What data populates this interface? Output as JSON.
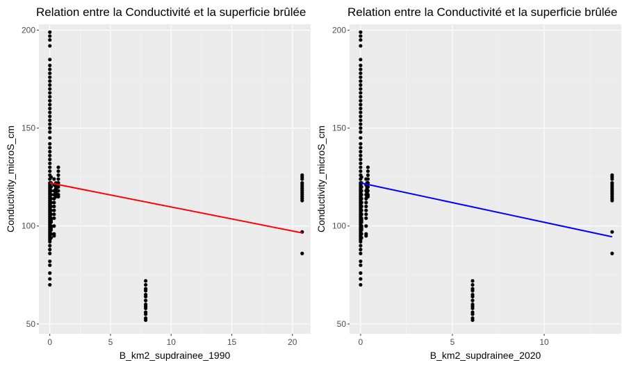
{
  "chart_data": [
    {
      "type": "scatter",
      "title": "Relation entre la Conductivité et la superficie brûlée",
      "xlabel": "B_km2_supdrainee_1990",
      "ylabel": "Conductivity_microS_cm",
      "xlim": [
        -0.9,
        21.5
      ],
      "ylim": [
        45,
        203
      ],
      "x_ticks": [
        0,
        5,
        10,
        15,
        20
      ],
      "x_tick_labels": [
        "0",
        "5",
        "10",
        "15",
        "20"
      ],
      "y_ticks": [
        50,
        100,
        150,
        200
      ],
      "y_tick_labels": [
        "50",
        "100",
        "150",
        "200"
      ],
      "grid": true,
      "background": "#ebebeb",
      "point_color": "#000000",
      "point_groups": [
        {
          "x": 0,
          "y": [
            199,
            197,
            195,
            192,
            185,
            182,
            180,
            178,
            176,
            174,
            172,
            170,
            168,
            166,
            164,
            162,
            160,
            158,
            156,
            154,
            152,
            150,
            148,
            145,
            142,
            140,
            138,
            136,
            134,
            132,
            130,
            128,
            126,
            124,
            122,
            121,
            120,
            119,
            118,
            117,
            116,
            115,
            114,
            113,
            112,
            111,
            110,
            109,
            108,
            107,
            106,
            105,
            104,
            103,
            102,
            101,
            100,
            99,
            98,
            97,
            96,
            95,
            94,
            93,
            92,
            90,
            88,
            86,
            82,
            80,
            76,
            73,
            70
          ]
        },
        {
          "x": 0.1,
          "y": [
            125,
            122,
            120,
            118,
            116,
            114,
            112,
            110,
            108,
            106,
            104,
            102,
            100,
            98,
            96,
            94,
            112,
            110,
            106,
            103,
            99
          ]
        },
        {
          "x": 0.35,
          "y": [
            124,
            121,
            118,
            116,
            114,
            112,
            110,
            108,
            106,
            104,
            100,
            96,
            95
          ]
        },
        {
          "x": 0.5,
          "y": [
            122,
            121,
            120,
            119,
            118,
            117,
            116,
            115
          ]
        },
        {
          "x": 0.7,
          "y": [
            130,
            128,
            126,
            124,
            122,
            120,
            118,
            116,
            115
          ]
        },
        {
          "x": 7.9,
          "y": [
            72,
            70,
            68,
            67,
            65,
            64,
            62,
            60,
            59,
            58,
            56,
            55,
            53,
            52
          ]
        },
        {
          "x": 20.8,
          "y": [
            126,
            125,
            124,
            122,
            121,
            120,
            119,
            118,
            117,
            116,
            115,
            114,
            113,
            97,
            86
          ]
        }
      ],
      "fit_line": {
        "color": "#ff0000",
        "x": [
          0,
          20.8
        ],
        "y": [
          122,
          96.5
        ]
      }
    },
    {
      "type": "scatter",
      "title": "Relation entre la Conductivité et la superficie brûlée",
      "xlabel": "B_km2_supdrainee_2020",
      "ylabel": "Conductivity_microS_cm",
      "xlim": [
        -0.6,
        14.2
      ],
      "ylim": [
        45,
        203
      ],
      "x_ticks": [
        0,
        5,
        10
      ],
      "x_tick_labels": [
        "0",
        "5",
        "10"
      ],
      "y_ticks": [
        50,
        100,
        150,
        200
      ],
      "y_tick_labels": [
        "50",
        "100",
        "150",
        "200"
      ],
      "grid": true,
      "background": "#ebebeb",
      "point_color": "#000000",
      "point_groups": [
        {
          "x": 0,
          "y": [
            199,
            197,
            195,
            192,
            185,
            182,
            180,
            178,
            176,
            174,
            172,
            170,
            168,
            166,
            164,
            162,
            160,
            158,
            156,
            154,
            152,
            150,
            148,
            145,
            142,
            140,
            138,
            136,
            134,
            132,
            130,
            128,
            126,
            124,
            122,
            121,
            120,
            119,
            118,
            117,
            116,
            115,
            114,
            113,
            112,
            111,
            110,
            109,
            108,
            107,
            106,
            105,
            104,
            103,
            102,
            101,
            100,
            99,
            98,
            97,
            96,
            95,
            94,
            93,
            92,
            90,
            88,
            86,
            82,
            80,
            76,
            73,
            70
          ]
        },
        {
          "x": 0.05,
          "y": [
            125,
            122,
            120,
            118,
            116,
            114,
            112,
            110,
            108,
            106,
            104,
            102,
            100,
            98,
            96,
            94,
            112,
            110,
            106,
            103,
            99
          ]
        },
        {
          "x": 0.3,
          "y": [
            124,
            121,
            118,
            116,
            114,
            112,
            110,
            108,
            106,
            104,
            100,
            96,
            95
          ]
        },
        {
          "x": 0.35,
          "y": [
            122,
            121,
            120,
            119,
            118,
            117,
            116,
            115
          ]
        },
        {
          "x": 0.4,
          "y": [
            130,
            128,
            126,
            124,
            122,
            120,
            118,
            116,
            115
          ]
        },
        {
          "x": 6.1,
          "y": [
            72,
            70,
            68,
            67,
            65,
            64,
            62,
            60,
            59,
            58,
            56,
            55,
            53,
            52
          ]
        },
        {
          "x": 13.7,
          "y": [
            126,
            125,
            124,
            122,
            121,
            120,
            119,
            118,
            117,
            116,
            115,
            114,
            113,
            97,
            86
          ]
        }
      ],
      "fit_line": {
        "color": "#0000ff",
        "x": [
          0,
          13.7
        ],
        "y": [
          122,
          94.5
        ]
      }
    }
  ]
}
